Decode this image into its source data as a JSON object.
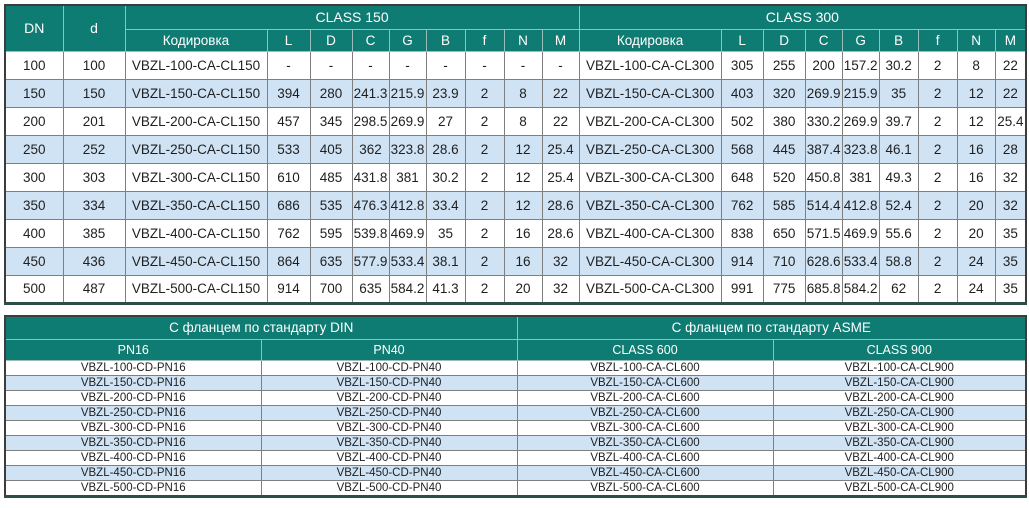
{
  "top_table": {
    "col_dn": "DN",
    "col_d": "d",
    "groups": [
      {
        "label": "CLASS 150"
      },
      {
        "label": "CLASS 300"
      }
    ],
    "sub_headers": [
      "Кодировка",
      "L",
      "D",
      "C",
      "G",
      "B",
      "f",
      "N",
      "M"
    ],
    "rows": [
      {
        "dn": "100",
        "d": "100",
        "c150": [
          "VBZL-100-CA-CL150",
          "-",
          "-",
          "-",
          "-",
          "-",
          "-",
          "-",
          "-"
        ],
        "c300": [
          "VBZL-100-CA-CL300",
          "305",
          "255",
          "200",
          "157.2",
          "30.2",
          "2",
          "8",
          "22"
        ]
      },
      {
        "dn": "150",
        "d": "150",
        "c150": [
          "VBZL-150-CA-CL150",
          "394",
          "280",
          "241.3",
          "215.9",
          "23.9",
          "2",
          "8",
          "22"
        ],
        "c300": [
          "VBZL-150-CA-CL300",
          "403",
          "320",
          "269.9",
          "215.9",
          "35",
          "2",
          "12",
          "22"
        ]
      },
      {
        "dn": "200",
        "d": "201",
        "c150": [
          "VBZL-200-CA-CL150",
          "457",
          "345",
          "298.5",
          "269.9",
          "27",
          "2",
          "8",
          "22"
        ],
        "c300": [
          "VBZL-200-CA-CL300",
          "502",
          "380",
          "330.2",
          "269.9",
          "39.7",
          "2",
          "12",
          "25.4"
        ]
      },
      {
        "dn": "250",
        "d": "252",
        "c150": [
          "VBZL-250-CA-CL150",
          "533",
          "405",
          "362",
          "323.8",
          "28.6",
          "2",
          "12",
          "25.4"
        ],
        "c300": [
          "VBZL-250-CA-CL300",
          "568",
          "445",
          "387.4",
          "323.8",
          "46.1",
          "2",
          "16",
          "28"
        ]
      },
      {
        "dn": "300",
        "d": "303",
        "c150": [
          "VBZL-300-CA-CL150",
          "610",
          "485",
          "431.8",
          "381",
          "30.2",
          "2",
          "12",
          "25.4"
        ],
        "c300": [
          "VBZL-300-CA-CL300",
          "648",
          "520",
          "450.8",
          "381",
          "49.3",
          "2",
          "16",
          "32"
        ]
      },
      {
        "dn": "350",
        "d": "334",
        "c150": [
          "VBZL-350-CA-CL150",
          "686",
          "535",
          "476.3",
          "412.8",
          "33.4",
          "2",
          "12",
          "28.6"
        ],
        "c300": [
          "VBZL-350-CA-CL300",
          "762",
          "585",
          "514.4",
          "412.8",
          "52.4",
          "2",
          "20",
          "32"
        ]
      },
      {
        "dn": "400",
        "d": "385",
        "c150": [
          "VBZL-400-CA-CL150",
          "762",
          "595",
          "539.8",
          "469.9",
          "35",
          "2",
          "16",
          "28.6"
        ],
        "c300": [
          "VBZL-400-CA-CL300",
          "838",
          "650",
          "571.5",
          "469.9",
          "55.6",
          "2",
          "20",
          "35"
        ]
      },
      {
        "dn": "450",
        "d": "436",
        "c150": [
          "VBZL-450-CA-CL150",
          "864",
          "635",
          "577.9",
          "533.4",
          "38.1",
          "2",
          "16",
          "32"
        ],
        "c300": [
          "VBZL-450-CA-CL300",
          "914",
          "710",
          "628.6",
          "533.4",
          "58.8",
          "2",
          "24",
          "35"
        ]
      },
      {
        "dn": "500",
        "d": "487",
        "c150": [
          "VBZL-500-CA-CL150",
          "914",
          "700",
          "635",
          "584.2",
          "41.3",
          "2",
          "20",
          "32"
        ],
        "c300": [
          "VBZL-500-CA-CL300",
          "991",
          "775",
          "685.8",
          "584.2",
          "62",
          "2",
          "24",
          "35"
        ]
      }
    ]
  },
  "bottom_table": {
    "groups": [
      {
        "label": "С фланцем по стандарту DIN",
        "sub": [
          "PN16",
          "PN40"
        ]
      },
      {
        "label": "С фланцем по стандарту ASME",
        "sub": [
          "CLASS 600",
          "CLASS 900"
        ]
      }
    ],
    "rows": [
      [
        "VBZL-100-CD-PN16",
        "VBZL-100-CD-PN40",
        "VBZL-100-CA-CL600",
        "VBZL-100-CA-CL900"
      ],
      [
        "VBZL-150-CD-PN16",
        "VBZL-150-CD-PN40",
        "VBZL-150-CA-CL600",
        "VBZL-150-CA-CL900"
      ],
      [
        "VBZL-200-CD-PN16",
        "VBZL-200-CD-PN40",
        "VBZL-200-CA-CL600",
        "VBZL-200-CA-CL900"
      ],
      [
        "VBZL-250-CD-PN16",
        "VBZL-250-CD-PN40",
        "VBZL-250-CA-CL600",
        "VBZL-250-CA-CL900"
      ],
      [
        "VBZL-300-CD-PN16",
        "VBZL-300-CD-PN40",
        "VBZL-300-CA-CL600",
        "VBZL-300-CA-CL900"
      ],
      [
        "VBZL-350-CD-PN16",
        "VBZL-350-CD-PN40",
        "VBZL-350-CA-CL600",
        "VBZL-350-CA-CL900"
      ],
      [
        "VBZL-400-CD-PN16",
        "VBZL-400-CD-PN40",
        "VBZL-400-CA-CL600",
        "VBZL-400-CA-CL900"
      ],
      [
        "VBZL-450-CD-PN16",
        "VBZL-450-CD-PN40",
        "VBZL-450-CA-CL600",
        "VBZL-450-CA-CL900"
      ],
      [
        "VBZL-500-CD-PN16",
        "VBZL-500-CD-PN40",
        "VBZL-500-CA-CL600",
        "VBZL-500-CA-CL900"
      ]
    ]
  },
  "colors": {
    "header_teal": "#0f7c73",
    "row_stripe_blue": "#cfe3f5",
    "border_gray": "#7f7f7f"
  }
}
